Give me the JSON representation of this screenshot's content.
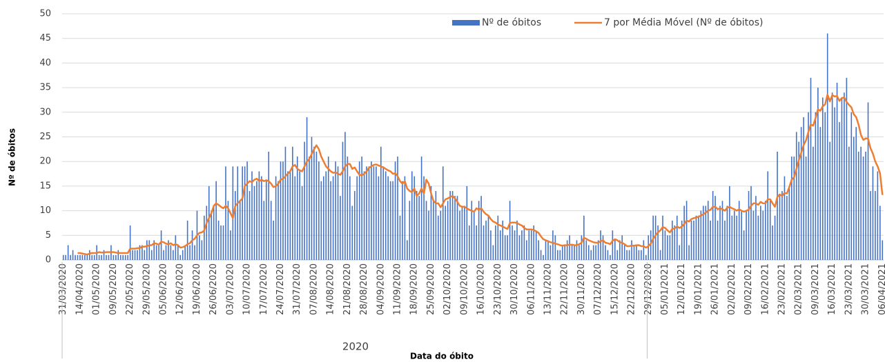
{
  "chart_data": {
    "type": "bar_line",
    "y_axis_label": "Nº de óbitos",
    "x_axis_label": "Data do óbito",
    "group_label": "2020",
    "ylim": [
      0,
      50
    ],
    "yticks": [
      0,
      5,
      10,
      15,
      20,
      25,
      30,
      35,
      40,
      45,
      50
    ],
    "grid": true,
    "legend": "top-right",
    "categories": [
      "31/03/2020",
      null,
      null,
      null,
      null,
      null,
      null,
      "14/04/2020",
      null,
      null,
      null,
      null,
      null,
      null,
      "01/05/2020",
      null,
      null,
      null,
      null,
      null,
      null,
      "09/05/2020",
      null,
      null,
      null,
      null,
      null,
      null,
      "22/05/2020",
      null,
      null,
      null,
      null,
      null,
      null,
      "29/05/2020",
      null,
      null,
      null,
      null,
      null,
      null,
      "05/06/2020",
      null,
      null,
      null,
      null,
      null,
      null,
      "12/06/2020",
      null,
      null,
      null,
      null,
      null,
      null,
      "19/06/2020",
      null,
      null,
      null,
      null,
      null,
      null,
      "26/06/2020",
      null,
      null,
      null,
      null,
      null,
      null,
      "03/07/2020",
      null,
      null,
      null,
      null,
      null,
      null,
      "10/07/2020",
      null,
      null,
      null,
      null,
      null,
      null,
      "17/07/2020",
      null,
      null,
      null,
      null,
      null,
      null,
      "24/07/2020",
      null,
      null,
      null,
      null,
      null,
      null,
      "31/07/2020",
      null,
      null,
      null,
      null,
      null,
      null,
      "07/08/2020",
      null,
      null,
      null,
      null,
      null,
      null,
      "14/08/2020",
      null,
      null,
      null,
      null,
      null,
      null,
      "21/08/2020",
      null,
      null,
      null,
      null,
      null,
      null,
      "28/08/2020",
      null,
      null,
      null,
      null,
      null,
      null,
      "04/09/2020",
      null,
      null,
      null,
      null,
      null,
      null,
      "11/09/2020",
      null,
      null,
      null,
      null,
      null,
      null,
      "18/09/2020",
      null,
      null,
      null,
      null,
      null,
      null,
      "25/09/2020",
      null,
      null,
      null,
      null,
      null,
      null,
      "02/10/2020",
      null,
      null,
      null,
      null,
      null,
      null,
      "09/10/2020",
      null,
      null,
      null,
      null,
      null,
      null,
      "16/10/2020",
      null,
      null,
      null,
      null,
      null,
      null,
      "23/10/2020",
      null,
      null,
      null,
      null,
      null,
      null,
      "30/10/2020",
      null,
      null,
      null,
      null,
      null,
      null,
      "06/11/2020",
      null,
      null,
      null,
      null,
      null,
      null,
      "13/11/2020",
      null,
      null,
      null,
      null,
      null,
      null,
      "22/11/2020",
      null,
      null,
      null,
      null,
      null,
      null,
      "30/11/2020",
      null,
      null,
      null,
      null,
      null,
      null,
      "07/12/2020",
      null,
      null,
      null,
      null,
      null,
      null,
      "15/12/2020",
      null,
      null,
      null,
      null,
      null,
      null,
      "22/12/2020",
      null,
      null,
      null,
      null,
      null,
      null,
      "29/12/2020",
      null,
      null,
      null,
      null,
      null,
      null,
      "05/01/2021",
      null,
      null,
      null,
      null,
      null,
      null,
      "12/01/2021",
      null,
      null,
      null,
      null,
      null,
      null,
      "19/01/2021",
      null,
      null,
      null,
      null,
      null,
      null,
      "26/01/2021",
      null,
      null,
      null,
      null,
      null,
      null,
      "02/02/2021",
      null,
      null,
      null,
      null,
      null,
      null,
      "09/02/2021",
      null,
      null,
      null,
      null,
      null,
      null,
      "16/02/2021",
      null,
      null,
      null,
      null,
      null,
      null,
      "23/02/2021",
      null,
      null,
      null,
      null,
      null,
      null,
      "02/03/2021",
      null,
      null,
      null,
      null,
      null,
      null,
      "09/03/2021",
      null,
      null,
      null,
      null,
      null,
      null,
      "16/03/2021",
      null,
      null,
      null,
      null,
      null,
      null,
      "23/03/2021",
      null,
      null,
      null,
      null,
      null,
      null,
      "30/03/2021",
      null,
      null,
      null,
      null,
      null,
      null,
      "06/04/2021"
    ],
    "series": [
      {
        "name": "Nº de óbitos",
        "type": "bar",
        "color": "#4472c4",
        "values": [
          1,
          1,
          3,
          1,
          2,
          1,
          1,
          1,
          1,
          1,
          1,
          2,
          1,
          1,
          3,
          1,
          1,
          2,
          1,
          1,
          3,
          1,
          1,
          2,
          1,
          1,
          1,
          1,
          7,
          2,
          2,
          2,
          3,
          3,
          2,
          4,
          4,
          2,
          4,
          3,
          3,
          6,
          2,
          3,
          4,
          3,
          2,
          5,
          3,
          1,
          2,
          3,
          8,
          3,
          6,
          3,
          10,
          5,
          4,
          9,
          11,
          15,
          10,
          11,
          16,
          8,
          7,
          7,
          19,
          12,
          6,
          19,
          14,
          19,
          12,
          19,
          19,
          20,
          14,
          18,
          15,
          16,
          18,
          17,
          12,
          16,
          22,
          12,
          8,
          17,
          16,
          20,
          20,
          23,
          18,
          18,
          23,
          17,
          21,
          18,
          15,
          24,
          29,
          21,
          25,
          23,
          22,
          20,
          16,
          17,
          18,
          21,
          16,
          17,
          20,
          19,
          13,
          24,
          26,
          21,
          17,
          11,
          14,
          17,
          20,
          21,
          18,
          19,
          19,
          20,
          19,
          19,
          17,
          23,
          19,
          18,
          17,
          16,
          16,
          20,
          21,
          9,
          16,
          17,
          4,
          12,
          18,
          17,
          14,
          13,
          21,
          17,
          12,
          10,
          15,
          12,
          14,
          9,
          10,
          19,
          11,
          12,
          14,
          14,
          13,
          13,
          10,
          11,
          11,
          15,
          7,
          12,
          10,
          7,
          12,
          13,
          7,
          8,
          9,
          6,
          3,
          7,
          9,
          6,
          8,
          5,
          5,
          12,
          7,
          6,
          8,
          5,
          6,
          7,
          4,
          6,
          6,
          7,
          6,
          4,
          2,
          1,
          4,
          4,
          3,
          6,
          5,
          2,
          2,
          3,
          3,
          4,
          5,
          3,
          3,
          4,
          3,
          5,
          9,
          4,
          3,
          2,
          3,
          3,
          4,
          6,
          5,
          3,
          2,
          1,
          6,
          4,
          2,
          4,
          5,
          3,
          2,
          2,
          4,
          3,
          3,
          2,
          2,
          4,
          1,
          5,
          6,
          9,
          9,
          7,
          2,
          9,
          6,
          5,
          5,
          8,
          7,
          9,
          3,
          8,
          11,
          12,
          3,
          8,
          8,
          9,
          9,
          10,
          11,
          11,
          12,
          8,
          14,
          13,
          8,
          11,
          12,
          8,
          11,
          15,
          9,
          10,
          9,
          12,
          10,
          6,
          10,
          14,
          15,
          10,
          13,
          9,
          11,
          10,
          12,
          18,
          12,
          7,
          9,
          22,
          13,
          14,
          17,
          13,
          15,
          21,
          21,
          26,
          24,
          27,
          29,
          21,
          30,
          37,
          23,
          30,
          35,
          27,
          33,
          30,
          46,
          24,
          34,
          31,
          36,
          28,
          33,
          34,
          37,
          23,
          30,
          25,
          27,
          22,
          23,
          21,
          22,
          32,
          14,
          19,
          14,
          18,
          11,
          4
        ]
      },
      {
        "name": "7 por Média Móvel (Nº de óbitos)",
        "type": "line",
        "color": "#ed7d31",
        "values": [
          null,
          null,
          null,
          null,
          null,
          null,
          1.4,
          1.4,
          1.3,
          1.2,
          1.1,
          1.3,
          1.4,
          1.4,
          1.4,
          1.6,
          1.5,
          1.5,
          1.6,
          1.6,
          1.6,
          1.6,
          1.5,
          1.4,
          1.4,
          1.4,
          1.4,
          1.4,
          2.3,
          2.3,
          2.3,
          2.4,
          2.4,
          2.7,
          2.7,
          2.8,
          3.0,
          3.0,
          3.4,
          3.3,
          3.1,
          3.7,
          3.6,
          3.3,
          3.2,
          3.4,
          3.0,
          3.2,
          3.0,
          2.5,
          2.6,
          2.8,
          3.2,
          3.4,
          4.0,
          4.3,
          5.0,
          5.5,
          5.6,
          6.0,
          7.5,
          8.5,
          9.5,
          11,
          11.5,
          11.2,
          10.8,
          10.5,
          11,
          10.5,
          9.5,
          8.5,
          11,
          11.5,
          12,
          12.5,
          15,
          15.5,
          16,
          15.8,
          16.3,
          16.5,
          16,
          16.3,
          16,
          16.2,
          16,
          15.5,
          14.8,
          15,
          15.5,
          16.3,
          16.5,
          17,
          17.5,
          18,
          19,
          19.3,
          18.5,
          18.2,
          18,
          19,
          20,
          20.5,
          21.5,
          22.5,
          23.3,
          22.5,
          21,
          20,
          19,
          18.5,
          18,
          17.7,
          17.8,
          17.5,
          17.3,
          18,
          19,
          19.5,
          19.5,
          18.5,
          18.8,
          18,
          17.3,
          17.2,
          17.5,
          18,
          18.7,
          19,
          19.3,
          19.4,
          19.2,
          19,
          18.8,
          18.5,
          18.2,
          18,
          17.5,
          17.6,
          17,
          16,
          15.5,
          16,
          14.5,
          14,
          13.8,
          14.5,
          13,
          13.5,
          14.5,
          13.5,
          16.3,
          15.5,
          13.5,
          12,
          11.5,
          11.5,
          10.7,
          11.5,
          12.3,
          12.5,
          12.8,
          13,
          12.5,
          11.8,
          11,
          10.8,
          10.8,
          10.5,
          10.2,
          10,
          9.8,
          10.5,
          10.2,
          10.5,
          9.8,
          9.3,
          9,
          8.3,
          7.8,
          7.6,
          7.2,
          7,
          6.8,
          6.5,
          6.3,
          7.5,
          7.6,
          7.6,
          7.5,
          7.2,
          7,
          6.5,
          6.2,
          6.2,
          6.2,
          6.1,
          5.8,
          5.5,
          4.8,
          4.2,
          4,
          3.8,
          3.6,
          3.5,
          3.3,
          3.2,
          3,
          2.9,
          3,
          3,
          3.1,
          3.1,
          3,
          3,
          3.2,
          3.5,
          4.5,
          4.3,
          4,
          3.8,
          3.6,
          3.5,
          3.5,
          3.8,
          4,
          3.5,
          3.4,
          3.2,
          3.9,
          4.2,
          4,
          3.6,
          3.5,
          3.2,
          2.8,
          2.8,
          2.9,
          2.9,
          3,
          3,
          2.8,
          2.8,
          2.5,
          2.8,
          3.3,
          4.3,
          5,
          5.6,
          6,
          6.7,
          6.5,
          6,
          5.6,
          6.3,
          6.4,
          6.8,
          6.5,
          6.8,
          7.3,
          8,
          7.8,
          8.3,
          8.5,
          8.6,
          8.8,
          9,
          9.3,
          9.6,
          10,
          10.2,
          10.8,
          10.8,
          10.3,
          10.5,
          10.3,
          10,
          10.6,
          10.8,
          10.5,
          10.3,
          10,
          10.3,
          10,
          9.8,
          10,
          10.2,
          11,
          11.5,
          11.5,
          11.2,
          11.8,
          11.5,
          11.5,
          12.3,
          12.3,
          11.5,
          10.8,
          12.8,
          13.3,
          13,
          13.6,
          13.5,
          14.8,
          16.3,
          16.8,
          18.5,
          20.3,
          21.8,
          23.3,
          24.3,
          26,
          27.5,
          27.3,
          28.8,
          30.6,
          30.3,
          31.2,
          31.6,
          33.6,
          32.2,
          33.5,
          33.2,
          33.3,
          32.3,
          32.9,
          33,
          32.1,
          31.5,
          31,
          29.6,
          29,
          27.5,
          25.4,
          24.4,
          24.7,
          24.6,
          22.7,
          21.6,
          20,
          19,
          17.6,
          13.2
        ]
      }
    ]
  }
}
